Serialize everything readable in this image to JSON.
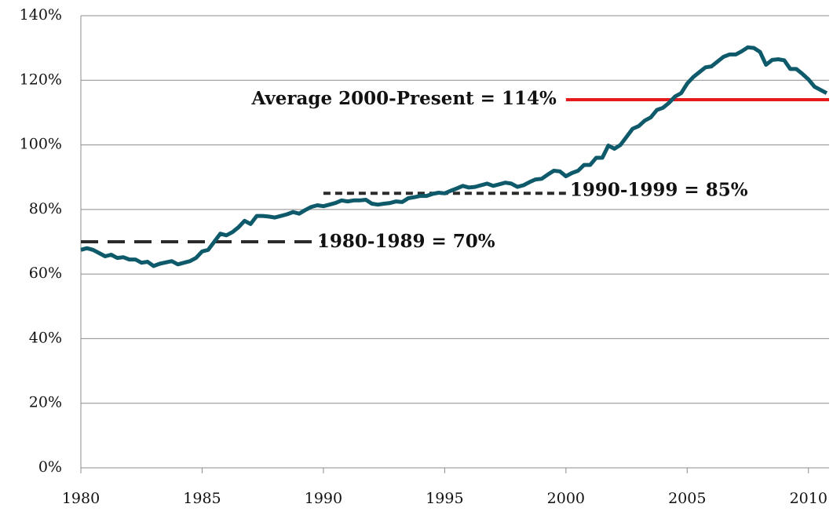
{
  "chart_data": {
    "type": "line",
    "x": [
      1980,
      1980.25,
      1980.5,
      1980.75,
      1981,
      1981.25,
      1981.5,
      1981.75,
      1982,
      1982.25,
      1982.5,
      1982.75,
      1983,
      1983.25,
      1983.5,
      1983.75,
      1984,
      1984.25,
      1984.5,
      1984.75,
      1985,
      1985.25,
      1985.5,
      1985.75,
      1986,
      1986.25,
      1986.5,
      1986.75,
      1987,
      1987.25,
      1987.5,
      1987.75,
      1988,
      1988.25,
      1988.5,
      1988.75,
      1989,
      1989.25,
      1989.5,
      1989.75,
      1990,
      1990.25,
      1990.5,
      1990.75,
      1991,
      1991.25,
      1991.5,
      1991.75,
      1992,
      1992.25,
      1992.5,
      1992.75,
      1993,
      1993.25,
      1993.5,
      1993.75,
      1994,
      1994.25,
      1994.5,
      1994.75,
      1995,
      1995.25,
      1995.5,
      1995.75,
      1996,
      1996.25,
      1996.5,
      1996.75,
      1997,
      1997.25,
      1997.5,
      1997.75,
      1998,
      1998.25,
      1998.5,
      1998.75,
      1999,
      1999.25,
      1999.5,
      1999.75,
      2000,
      2000.25,
      2000.5,
      2000.75,
      2001,
      2001.25,
      2001.5,
      2001.75,
      2002,
      2002.25,
      2002.5,
      2002.75,
      2003,
      2003.25,
      2003.5,
      2003.75,
      2004,
      2004.25,
      2004.5,
      2004.75,
      2005,
      2005.25,
      2005.5,
      2005.75,
      2006,
      2006.25,
      2006.5,
      2006.75,
      2007,
      2007.25,
      2007.5,
      2007.75,
      2008,
      2008.25,
      2008.5,
      2008.75,
      2009,
      2009.25,
      2009.5,
      2009.75,
      2010,
      2010.25,
      2010.5,
      2010.75
    ],
    "series": [
      {
        "color": "#0e5a6b",
        "values": [
          67.5,
          68,
          67.5,
          66.5,
          65.5,
          66,
          65,
          65.2,
          64.5,
          64.5,
          63.5,
          63.8,
          62.5,
          63.2,
          63.6,
          64,
          63,
          63.5,
          64,
          65,
          67,
          67.5,
          70,
          72.5,
          72,
          73,
          74.5,
          76.5,
          75.5,
          78,
          78,
          77.8,
          77.5,
          78,
          78.5,
          79.2,
          78.7,
          79.8,
          80.8,
          81.3,
          81,
          81.5,
          82,
          82.8,
          82.5,
          82.8,
          82.8,
          83,
          81.8,
          81.5,
          81.8,
          82,
          82.5,
          82.3,
          83.5,
          83.8,
          84.2,
          84.2,
          84.8,
          85.2,
          85,
          85.8,
          86.5,
          87.3,
          86.8,
          87,
          87.5,
          88,
          87.3,
          87.8,
          88.3,
          88,
          87,
          87.5,
          88.5,
          89.3,
          89.5,
          90.8,
          92,
          91.8,
          90.3,
          91.3,
          92,
          93.8,
          93.8,
          96,
          96,
          99.8,
          98.8,
          100,
          102.5,
          105,
          105.8,
          107.5,
          108.5,
          110.8,
          111.5,
          113,
          115,
          116,
          119,
          121,
          122.5,
          124,
          124.3,
          125.8,
          127.3,
          128,
          128,
          129,
          130.2,
          130,
          128.8,
          124.8,
          126.3,
          126.5,
          126.2,
          123.5,
          123.5,
          122,
          120.3,
          118,
          117,
          116
        ]
      }
    ],
    "averages": [
      {
        "label": "1980-1989 = 70%",
        "value": 70,
        "x": [
          1980,
          1990
        ],
        "color": "#2b2b2b",
        "dash": "dashed"
      },
      {
        "label": "1990-1999 = 85%",
        "value": 85,
        "x": [
          1990,
          2000
        ],
        "color": "#2b2b2b",
        "dash": "dotted"
      },
      {
        "label": "Average 2000-Present = 114%",
        "value": 114,
        "x": [
          2000,
          2010.85
        ],
        "color": "#e41a1c",
        "dash": "solid"
      }
    ],
    "xlim": [
      1980,
      2010.85
    ],
    "xticks": [
      1980,
      1985,
      1990,
      1995,
      2000,
      2005,
      2010
    ],
    "ylim": [
      0,
      140
    ],
    "yticks": [
      {
        "value": 0,
        "label": "0%"
      },
      {
        "value": 20,
        "label": "20%"
      },
      {
        "value": 40,
        "label": "40%"
      },
      {
        "value": 60,
        "label": "60%"
      },
      {
        "value": 80,
        "label": "80%"
      },
      {
        "value": 100,
        "label": "100%"
      },
      {
        "value": 120,
        "label": "120%"
      },
      {
        "value": 140,
        "label": "140%"
      }
    ],
    "grid": true
  }
}
